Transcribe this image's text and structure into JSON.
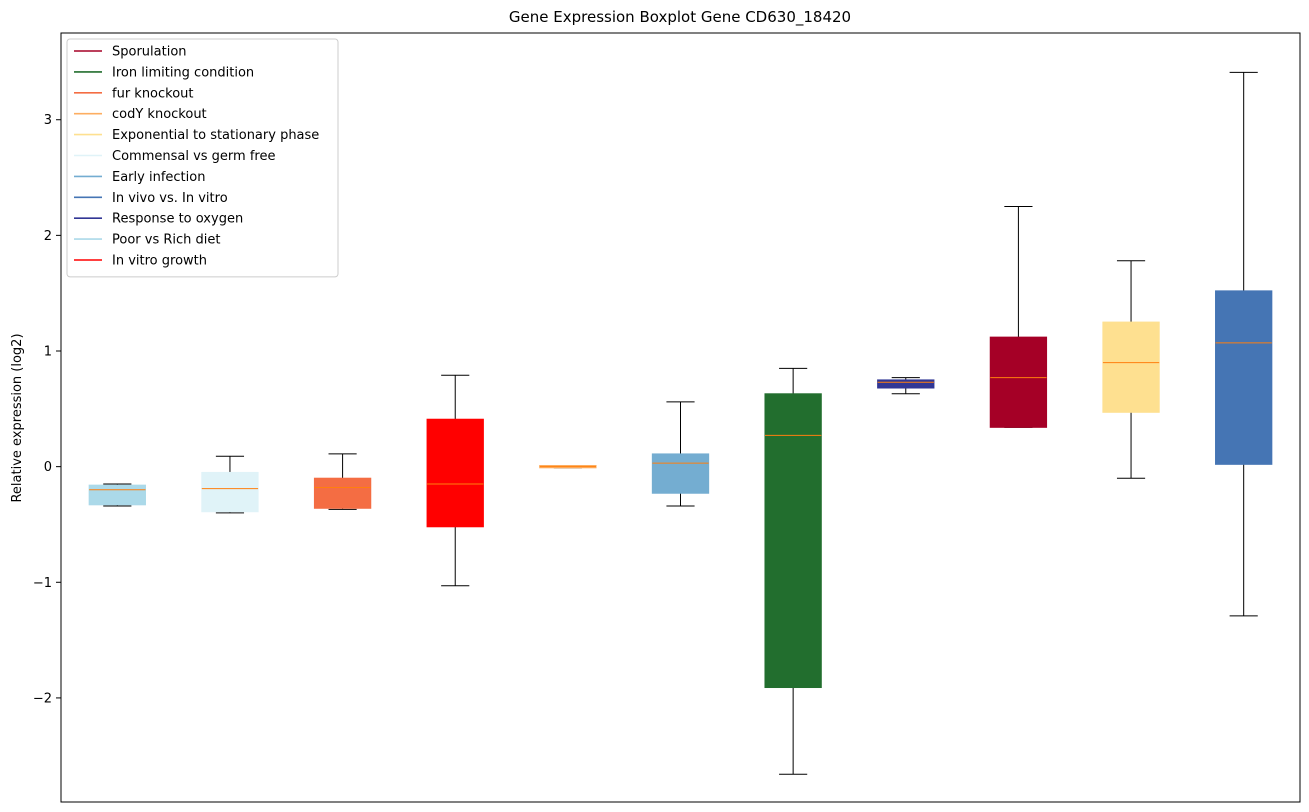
{
  "chart_data": {
    "type": "boxplot",
    "title": "Gene Expression Boxplot Gene CD630_18420",
    "xlabel": "",
    "ylabel": "Relative expression (log2)",
    "ylim": [
      -2.9,
      3.75
    ],
    "yticks": [
      {
        "value": -2,
        "label": "−2"
      },
      {
        "value": -1,
        "label": "−1"
      },
      {
        "value": 0,
        "label": "0"
      },
      {
        "value": 1,
        "label": "1"
      },
      {
        "value": 2,
        "label": "2"
      },
      {
        "value": 3,
        "label": "3"
      }
    ],
    "grid": false,
    "legend_position": "top-left",
    "median_color": "#ff7f0e",
    "legend": [
      {
        "name": "Sporulation",
        "color": "#a50026"
      },
      {
        "name": "Iron limiting condition",
        "color": "#226e2e"
      },
      {
        "name": "fur knockout",
        "color": "#f46d43"
      },
      {
        "name": "codY knockout",
        "color": "#fdae61"
      },
      {
        "name": "Exponential to stationary phase",
        "color": "#fee090"
      },
      {
        "name": "Commensal vs germ free",
        "color": "#e0f3f8"
      },
      {
        "name": "Early infection",
        "color": "#74add1"
      },
      {
        "name": "In vivo vs. In vitro",
        "color": "#4575b4"
      },
      {
        "name": "Response to oxygen",
        "color": "#313695"
      },
      {
        "name": "Poor vs Rich diet",
        "color": "#abd9e9"
      },
      {
        "name": "In vitro growth",
        "color": "#ff0000"
      }
    ],
    "boxes": [
      {
        "series": "Poor vs Rich diet",
        "color": "#abd9e9",
        "whisker_low": -0.34,
        "q1": -0.33,
        "median": -0.2,
        "q3": -0.16,
        "whisker_high": -0.15
      },
      {
        "series": "Commensal vs germ free",
        "color": "#e0f3f8",
        "whisker_low": -0.4,
        "q1": -0.39,
        "median": -0.19,
        "q3": -0.05,
        "whisker_high": 0.09
      },
      {
        "series": "fur knockout",
        "color": "#f46d43",
        "whisker_low": -0.37,
        "q1": -0.36,
        "median": -0.18,
        "q3": -0.1,
        "whisker_high": 0.11
      },
      {
        "series": "In vitro growth",
        "color": "#ff0000",
        "whisker_low": -1.03,
        "q1": -0.52,
        "median": -0.15,
        "q3": 0.41,
        "whisker_high": 0.79
      },
      {
        "series": "codY knockout",
        "color": "#fdae61",
        "whisker_low": -0.01,
        "q1": -0.01,
        "median": 0.0,
        "q3": 0.01,
        "whisker_high": 0.01
      },
      {
        "series": "Early infection",
        "color": "#74add1",
        "whisker_low": -0.34,
        "q1": -0.23,
        "median": 0.03,
        "q3": 0.11,
        "whisker_high": 0.56
      },
      {
        "series": "Iron limiting condition",
        "color": "#226e2e",
        "whisker_low": -2.66,
        "q1": -1.91,
        "median": 0.27,
        "q3": 0.63,
        "whisker_high": 0.85
      },
      {
        "series": "Response to oxygen",
        "color": "#313695",
        "whisker_low": 0.63,
        "q1": 0.68,
        "median": 0.73,
        "q3": 0.75,
        "whisker_high": 0.77
      },
      {
        "series": "Sporulation",
        "color": "#a50026",
        "whisker_low": 0.34,
        "q1": 0.34,
        "median": 0.77,
        "q3": 1.12,
        "whisker_high": 2.25
      },
      {
        "series": "Exponential to stationary phase",
        "color": "#fee090",
        "whisker_low": -0.1,
        "q1": 0.47,
        "median": 0.9,
        "q3": 1.25,
        "whisker_high": 1.78
      },
      {
        "series": "In vivo vs. In vitro",
        "color": "#4575b4",
        "whisker_low": -1.29,
        "q1": 0.02,
        "median": 1.07,
        "q3": 1.52,
        "whisker_high": 3.41
      }
    ]
  }
}
